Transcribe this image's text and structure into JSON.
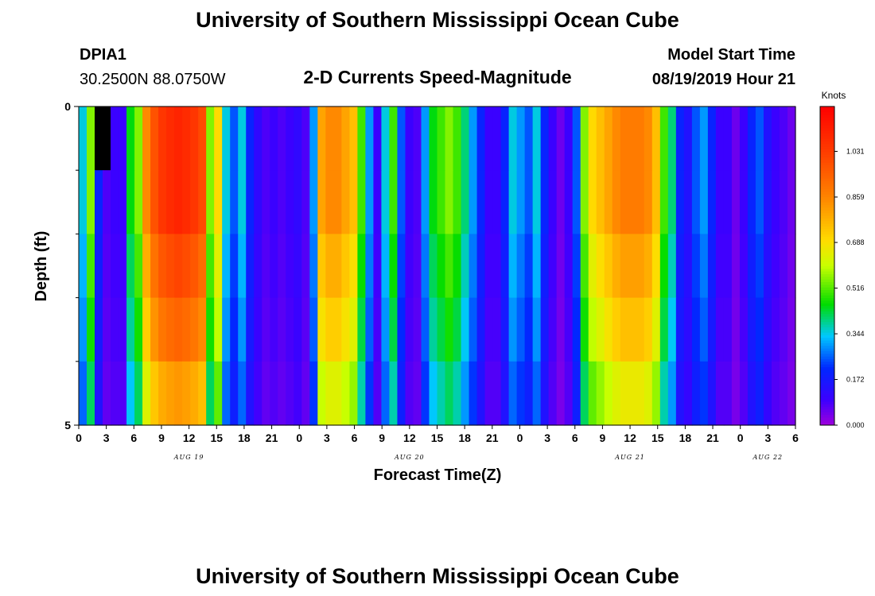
{
  "header": {
    "title": "University of Southern Mississippi Ocean Cube",
    "station_id": "DPIA1",
    "location": "30.2500N 88.0750W",
    "model_start_label": "Model Start Time",
    "model_start_value": "08/19/2019 Hour 21"
  },
  "footer": {
    "title": "University of Southern Mississippi Ocean Cube"
  },
  "chart_data": {
    "type": "heatmap",
    "title": "2-D Currents Speed-Magnitude",
    "xlabel": "Forecast Time(Z)",
    "ylabel": "Depth (ft)",
    "ylim": [
      0,
      5
    ],
    "y_tick_labels": [
      "0",
      "5"
    ],
    "y_minor_ticks": [
      1,
      2,
      3,
      4
    ],
    "x_start_hour": 0,
    "x_end_hour": 78,
    "x_tick_labels": [
      "0",
      "3",
      "6",
      "9",
      "12",
      "15",
      "18",
      "21",
      "0",
      "3",
      "6",
      "9",
      "12",
      "15",
      "18",
      "21",
      "0",
      "3",
      "6",
      "9",
      "12",
      "15",
      "18",
      "21",
      "0",
      "3",
      "6"
    ],
    "date_labels": [
      {
        "label": "AUG 19",
        "hour": 12
      },
      {
        "label": "AUG 20",
        "hour": 36
      },
      {
        "label": "AUG 21",
        "hour": 60
      },
      {
        "label": "AUG 22",
        "hour": 75
      }
    ],
    "colorbar": {
      "title": "Knots",
      "min": 0.0,
      "max": 1.2,
      "tick_values": [
        0.0,
        0.172,
        0.344,
        0.516,
        0.688,
        0.859,
        1.031
      ],
      "tick_labels": [
        "0.000",
        "0.172",
        "0.344",
        "0.516",
        "0.688",
        "0.859",
        "1.031"
      ]
    },
    "depth_levels": [
      0,
      1,
      2,
      3,
      4
    ],
    "surface_column_speeds": [
      0.35,
      0.55,
      0.2,
      0.08,
      0.1,
      0.1,
      0.45,
      0.55,
      0.85,
      0.98,
      1.05,
      1.08,
      1.1,
      1.08,
      1.05,
      1.0,
      0.55,
      0.7,
      0.35,
      0.25,
      0.35,
      0.2,
      0.12,
      0.08,
      0.1,
      0.08,
      0.1,
      0.12,
      0.08,
      0.3,
      0.8,
      0.85,
      0.85,
      0.8,
      0.75,
      0.5,
      0.3,
      0.1,
      0.35,
      0.5,
      0.25,
      0.1,
      0.08,
      0.3,
      0.45,
      0.5,
      0.55,
      0.5,
      0.4,
      0.3,
      0.2,
      0.1,
      0.1,
      0.2,
      0.35,
      0.3,
      0.25,
      0.35,
      0.2,
      0.1,
      0.05,
      0.1,
      0.25,
      0.55,
      0.7,
      0.75,
      0.8,
      0.85,
      0.88,
      0.88,
      0.88,
      0.85,
      0.75,
      0.5,
      0.4,
      0.2,
      0.15,
      0.25,
      0.3,
      0.2,
      0.1,
      0.1,
      0.05,
      0.1,
      0.2,
      0.25,
      0.15,
      0.1,
      0.08,
      0.05
    ],
    "depth_factors": [
      1.0,
      1.0,
      0.92,
      0.85,
      0.75
    ],
    "missing_cells": [
      {
        "hour": 2,
        "depth": 0
      }
    ]
  }
}
